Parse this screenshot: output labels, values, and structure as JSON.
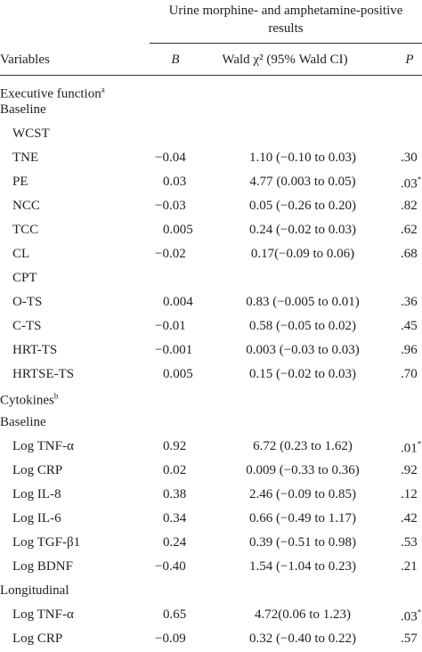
{
  "table": {
    "header": {
      "group_title": "Urine morphine- and amphetamine-positive results",
      "columns": [
        "Variables",
        "B",
        "Wald χ² (95% Wald CI)",
        "P"
      ]
    },
    "sections": [
      {
        "title": "Executive function",
        "note": "a",
        "subsections": [
          {
            "title": "Baseline",
            "groups": [
              {
                "title": "WCST",
                "rows": [
                  {
                    "variable": "TNE",
                    "b": "−0.04",
                    "wald": "1.10 (−0.10 to 0.03)",
                    "p": ".30"
                  },
                  {
                    "variable": "PE",
                    "b": "0.03",
                    "wald": "4.77 (0.003 to 0.05)",
                    "p": ".03",
                    "mark": "*"
                  },
                  {
                    "variable": "NCC",
                    "b": "−0.03",
                    "wald": "0.05 (−0.26 to 0.20)",
                    "p": ".82"
                  },
                  {
                    "variable": "TCC",
                    "b": "0.005",
                    "wald": "0.24 (−0.02 to 0.03)",
                    "p": ".62"
                  },
                  {
                    "variable": "CL",
                    "b": "−0.02",
                    "wald": "0.17(−0.09 to 0.06)",
                    "p": ".68"
                  }
                ]
              },
              {
                "title": "CPT",
                "rows": [
                  {
                    "variable": "O-TS",
                    "b": "0.004",
                    "wald": "0.83 (−0.005 to 0.01)",
                    "p": ".36"
                  },
                  {
                    "variable": "C-TS",
                    "b": "−0.01",
                    "wald": "0.58 (−0.05 to 0.02)",
                    "p": ".45"
                  },
                  {
                    "variable": "HRT-TS",
                    "b": "−0.001",
                    "wald": "0.003 (−0.03 to 0.03)",
                    "p": ".96"
                  },
                  {
                    "variable": "HRTSE-TS",
                    "b": "0.005",
                    "wald": "0.15 (−0.02 to 0.03)",
                    "p": ".70"
                  }
                ]
              }
            ]
          }
        ]
      },
      {
        "title": "Cytokines",
        "note": "b",
        "subsections": [
          {
            "title": "Baseline",
            "groups": [
              {
                "rows": [
                  {
                    "variable": "Log TNF-α",
                    "b": "0.92",
                    "wald": "6.72 (0.23 to 1.62)",
                    "p": ".01",
                    "mark": "*"
                  },
                  {
                    "variable": "Log CRP",
                    "b": "0.02",
                    "wald": "0.009 (−0.33 to 0.36)",
                    "p": ".92"
                  },
                  {
                    "variable": "Log IL-8",
                    "b": "0.38",
                    "wald": "2.46 (−0.09 to 0.85)",
                    "p": ".12"
                  },
                  {
                    "variable": "Log IL-6",
                    "b": "0.34",
                    "wald": "0.66 (−0.49 to 1.17)",
                    "p": ".42"
                  },
                  {
                    "variable": "Log TGF-β1",
                    "b": "0.24",
                    "wald": "0.39 (−0.51 to 0.98)",
                    "p": ".53"
                  },
                  {
                    "variable": "Log BDNF",
                    "b": "−0.40",
                    "wald": "1.54 (−1.04 to 0.23)",
                    "p": ".21"
                  }
                ]
              }
            ]
          },
          {
            "title": "Longitudinal",
            "groups": [
              {
                "rows": [
                  {
                    "variable": "Log TNF-α",
                    "b": "0.65",
                    "wald": "4.72(0.06 to 1.23)",
                    "p": ".03",
                    "mark": "*"
                  },
                  {
                    "variable": "Log CRP",
                    "b": "−0.09",
                    "wald": "0.32 (−0.40 to 0.22)",
                    "p": ".57"
                  }
                ]
              }
            ]
          }
        ]
      }
    ]
  }
}
